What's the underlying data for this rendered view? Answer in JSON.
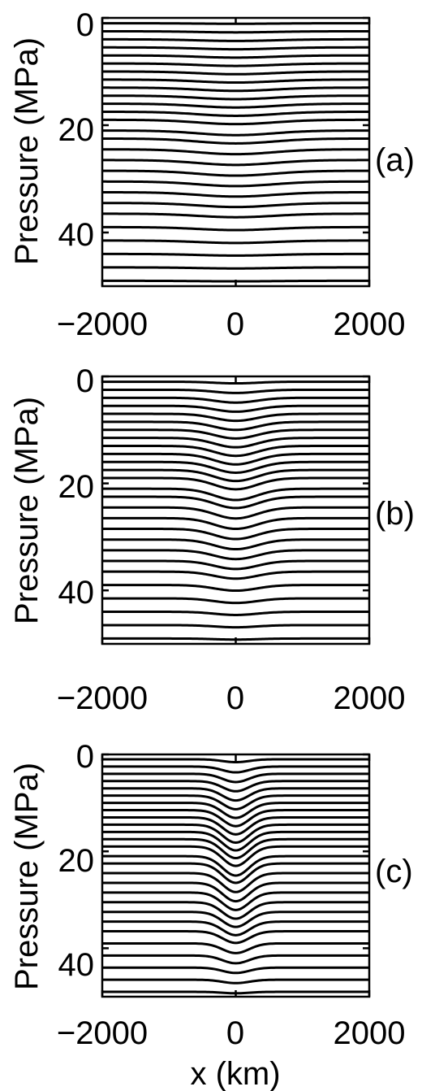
{
  "chart_data": [
    {
      "type": "line",
      "panel_label": "(a)",
      "ylabel": "Pressure (MPa)",
      "xlabel": "",
      "xlim": [
        -2000,
        2000
      ],
      "ylim": [
        50,
        0
      ],
      "y_reversed": true,
      "xticks": [
        -2000,
        0,
        2000
      ],
      "xtick_labels": [
        "−2000",
        "0",
        "2000"
      ],
      "yticks": [
        0,
        20,
        40
      ],
      "ytick_labels": [
        "0",
        "20",
        "40"
      ],
      "grid": false,
      "profile": "gaussian",
      "profile_width_km": 800,
      "series": [
        {
          "base": 1,
          "dip": 0.1
        },
        {
          "base": 2.5,
          "dip": 0.2
        },
        {
          "base": 4,
          "dip": 0.3
        },
        {
          "base": 5.5,
          "dip": 0.35
        },
        {
          "base": 7,
          "dip": 0.4
        },
        {
          "base": 8.5,
          "dip": 0.45
        },
        {
          "base": 10,
          "dip": 0.5
        },
        {
          "base": 11.5,
          "dip": 0.55
        },
        {
          "base": 13,
          "dip": 0.6
        },
        {
          "base": 14.5,
          "dip": 0.65
        },
        {
          "base": 16,
          "dip": 0.7
        },
        {
          "base": 17.5,
          "dip": 0.75
        },
        {
          "base": 19,
          "dip": 0.8
        },
        {
          "base": 21,
          "dip": 0.85
        },
        {
          "base": 22.5,
          "dip": 0.9
        },
        {
          "base": 24.5,
          "dip": 0.9
        },
        {
          "base": 26.5,
          "dip": 0.9
        },
        {
          "base": 28.5,
          "dip": 0.9
        },
        {
          "base": 30.5,
          "dip": 0.85
        },
        {
          "base": 32.5,
          "dip": 0.8
        },
        {
          "base": 34.5,
          "dip": 0.75
        },
        {
          "base": 36.5,
          "dip": 0.65
        },
        {
          "base": 39,
          "dip": 0.55
        },
        {
          "base": 41.5,
          "dip": 0.45
        },
        {
          "base": 44,
          "dip": 0.3
        },
        {
          "base": 46.5,
          "dip": 0.2
        },
        {
          "base": 49,
          "dip": 0.1
        }
      ]
    },
    {
      "type": "line",
      "panel_label": "(b)",
      "ylabel": "Pressure (MPa)",
      "xlabel": "",
      "xlim": [
        -2000,
        2000
      ],
      "ylim": [
        50,
        0
      ],
      "y_reversed": true,
      "xticks": [
        -2000,
        0,
        2000
      ],
      "xtick_labels": [
        "−2000",
        "0",
        "2000"
      ],
      "yticks": [
        0,
        20,
        40
      ],
      "ytick_labels": [
        "0",
        "20",
        "40"
      ],
      "grid": false,
      "profile": "gaussian",
      "profile_width_km": 450,
      "series": [
        {
          "base": 1,
          "dip": 0.3
        },
        {
          "base": 2.5,
          "dip": 0.6
        },
        {
          "base": 4,
          "dip": 0.9
        },
        {
          "base": 5.5,
          "dip": 1.1
        },
        {
          "base": 7,
          "dip": 1.3
        },
        {
          "base": 8.5,
          "dip": 1.5
        },
        {
          "base": 10,
          "dip": 1.6
        },
        {
          "base": 11.5,
          "dip": 1.75
        },
        {
          "base": 13,
          "dip": 1.85
        },
        {
          "base": 14.5,
          "dip": 1.95
        },
        {
          "base": 16,
          "dip": 2.0
        },
        {
          "base": 17.5,
          "dip": 2.05
        },
        {
          "base": 19,
          "dip": 2.1
        },
        {
          "base": 21,
          "dip": 2.1
        },
        {
          "base": 22.5,
          "dip": 2.1
        },
        {
          "base": 24.5,
          "dip": 2.05
        },
        {
          "base": 26.5,
          "dip": 2.0
        },
        {
          "base": 28.5,
          "dip": 1.9
        },
        {
          "base": 30.5,
          "dip": 1.8
        },
        {
          "base": 32.5,
          "dip": 1.65
        },
        {
          "base": 34.5,
          "dip": 1.5
        },
        {
          "base": 36.5,
          "dip": 1.3
        },
        {
          "base": 39,
          "dip": 1.05
        },
        {
          "base": 41.5,
          "dip": 0.85
        },
        {
          "base": 44,
          "dip": 0.6
        },
        {
          "base": 46.5,
          "dip": 0.4
        },
        {
          "base": 49,
          "dip": 0.2
        }
      ]
    },
    {
      "type": "line",
      "panel_label": "(c)",
      "ylabel": "Pressure (MPa)",
      "xlabel": "x (km)",
      "xlim": [
        -2000,
        2000
      ],
      "ylim": [
        50,
        0
      ],
      "y_reversed": true,
      "xticks": [
        -2000,
        0,
        2000
      ],
      "xtick_labels": [
        "−2000",
        "0",
        "2000"
      ],
      "yticks": [
        0,
        20,
        40
      ],
      "ytick_labels": [
        "0",
        "20",
        "40"
      ],
      "grid": false,
      "profile": "gaussian",
      "profile_width_km": 280,
      "series": [
        {
          "base": 1,
          "dip": 0.6
        },
        {
          "base": 2.5,
          "dip": 1.2
        },
        {
          "base": 4,
          "dip": 1.7
        },
        {
          "base": 5.5,
          "dip": 2.1
        },
        {
          "base": 7,
          "dip": 2.5
        },
        {
          "base": 8.5,
          "dip": 2.8
        },
        {
          "base": 10,
          "dip": 3.1
        },
        {
          "base": 11.5,
          "dip": 3.3
        },
        {
          "base": 13,
          "dip": 3.5
        },
        {
          "base": 14.5,
          "dip": 3.7
        },
        {
          "base": 16,
          "dip": 3.8
        },
        {
          "base": 17.5,
          "dip": 3.9
        },
        {
          "base": 19,
          "dip": 4.0
        },
        {
          "base": 21,
          "dip": 4.0
        },
        {
          "base": 22.5,
          "dip": 4.0
        },
        {
          "base": 24.5,
          "dip": 3.9
        },
        {
          "base": 26.5,
          "dip": 3.8
        },
        {
          "base": 28.5,
          "dip": 3.6
        },
        {
          "base": 30.5,
          "dip": 3.4
        },
        {
          "base": 32.5,
          "dip": 3.1
        },
        {
          "base": 34.5,
          "dip": 2.8
        },
        {
          "base": 36.5,
          "dip": 2.4
        },
        {
          "base": 39,
          "dip": 2.0
        },
        {
          "base": 41.5,
          "dip": 1.6
        },
        {
          "base": 44,
          "dip": 1.1
        },
        {
          "base": 46.5,
          "dip": 0.7
        },
        {
          "base": 49,
          "dip": 0.3
        }
      ]
    }
  ]
}
